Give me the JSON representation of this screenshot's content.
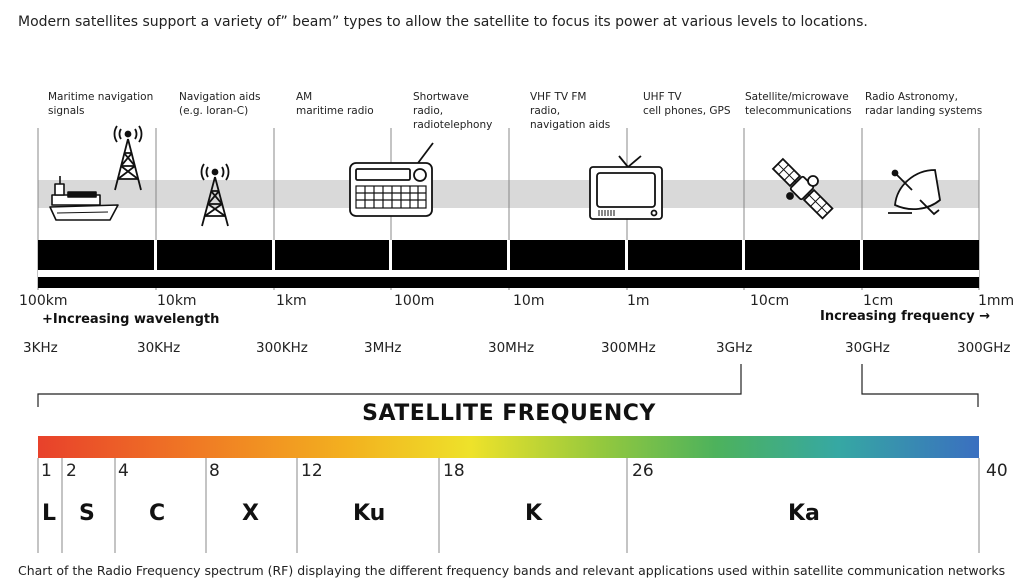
{
  "intro": "Modern satellites support a variety of” beam” types to allow the satellite to focus its power at various levels to locations.",
  "applications": [
    {
      "label": "Maritime navigation\nsignals",
      "icon": "ship-icon"
    },
    {
      "label": "Navigation aids\n(e.g. loran-C)",
      "icon": "radio-tower-icon"
    },
    {
      "label": "AM\nmaritime radio",
      "icon": ""
    },
    {
      "label": "Shortwave\nradio,\nradiotelephony",
      "icon": "radio-receiver-icon"
    },
    {
      "label": "VHF TV FM\nradio,\nnavigation aids",
      "icon": ""
    },
    {
      "label": "UHF TV\ncell phones, GPS",
      "icon": "television-icon"
    },
    {
      "label": "Satellite/microwave\ntelecommunications",
      "icon": "satellite-icon"
    },
    {
      "label": "Radio Astronomy,\nradar landing systems",
      "icon": "satellite-dish-icon"
    }
  ],
  "wavelengths": [
    "100km",
    "10km",
    "1km",
    "100m",
    "10m",
    "1m",
    "10cm",
    "1cm",
    "1mm"
  ],
  "wavelength_note": "+Increasing wavelength",
  "frequency_note": "Increasing frequency →",
  "frequencies": [
    "3KHz",
    "30KHz",
    "300KHz",
    "3MHz",
    "30MHz",
    "300MHz",
    "3GHz",
    "30GHz",
    "300GHz"
  ],
  "satellite_title": "SATELLITE FREQUENCY",
  "band_numbers": [
    "1",
    "2",
    "4",
    "8",
    "12",
    "18",
    "26",
    "40"
  ],
  "bands": [
    "L",
    "S",
    "C",
    "X",
    "Ku",
    "K",
    "Ka"
  ],
  "gradient_colors": [
    "#e8412b",
    "#f07a24",
    "#f3b11f",
    "#eee22a",
    "#93c83e",
    "#4db25c",
    "#36a8a3",
    "#3a6fc0"
  ],
  "caption": "Chart of the Radio Frequency spectrum (RF) displaying the different frequency bands and relevant applications used within satellite communication networks"
}
